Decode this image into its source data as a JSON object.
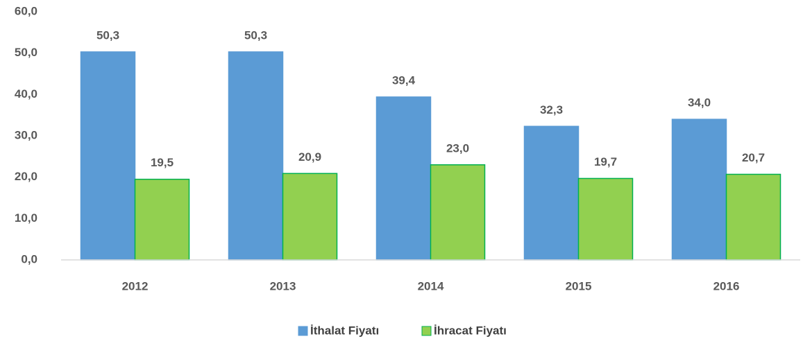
{
  "chart_data": {
    "type": "bar",
    "categories": [
      "2012",
      "2013",
      "2014",
      "2015",
      "2016"
    ],
    "series": [
      {
        "name": "İthalat Fiyatı",
        "color": "#5b9bd5",
        "values": [
          50.3,
          50.3,
          39.4,
          32.3,
          34.0
        ],
        "value_labels": [
          "50,3",
          "50,3",
          "39,4",
          "32,3",
          "34,0"
        ]
      },
      {
        "name": "İhracat Fiyatı",
        "color": "#92d050",
        "values": [
          19.5,
          20.9,
          23.0,
          19.7,
          20.7
        ],
        "value_labels": [
          "19,5",
          "20,9",
          "23,0",
          "19,7",
          "20,7"
        ]
      }
    ],
    "ylim": [
      0,
      60
    ],
    "yticks": [
      {
        "value": 0,
        "label": "0,0"
      },
      {
        "value": 10,
        "label": "10,0"
      },
      {
        "value": 20,
        "label": "20,0"
      },
      {
        "value": 30,
        "label": "30,0"
      },
      {
        "value": 40,
        "label": "40,0"
      },
      {
        "value": 50,
        "label": "50,0"
      },
      {
        "value": 60,
        "label": "60,0"
      }
    ],
    "grid": false,
    "legend": "bottom"
  }
}
